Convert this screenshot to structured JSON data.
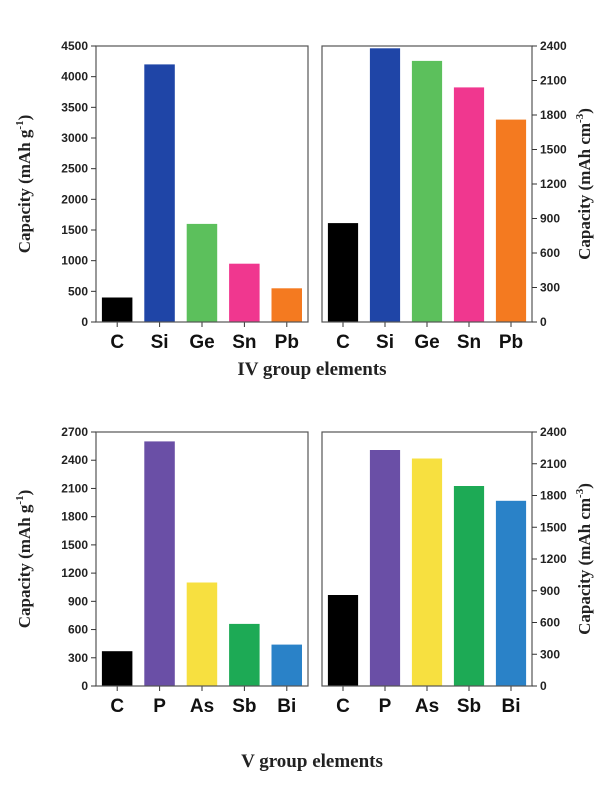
{
  "chart_data": [
    {
      "type": "bar",
      "categories": [
        "C",
        "Si",
        "Ge",
        "Sn",
        "Pb"
      ],
      "values": [
        400,
        4200,
        1600,
        950,
        550
      ],
      "colors": [
        "#000000",
        "#1f45a7",
        "#5cc05c",
        "#f0378f",
        "#f47a20"
      ],
      "ylabel": "Capacity (mAh g-1)",
      "ylim": [
        0,
        4500
      ],
      "yticks": [
        0,
        500,
        1000,
        1500,
        2000,
        2500,
        3000,
        3500,
        4000,
        4500
      ],
      "y_axis_side": "left",
      "grid": false
    },
    {
      "type": "bar",
      "categories": [
        "C",
        "Si",
        "Ge",
        "Sn",
        "Pb"
      ],
      "values": [
        860,
        2380,
        2270,
        2040,
        1760
      ],
      "colors": [
        "#000000",
        "#1f45a7",
        "#5cc05c",
        "#f0378f",
        "#f47a20"
      ],
      "ylabel": "Capacity (mAh cm-3)",
      "ylim": [
        0,
        2400
      ],
      "yticks": [
        0,
        300,
        600,
        900,
        1200,
        1500,
        1800,
        2100,
        2400
      ],
      "y_axis_side": "right",
      "grid": false
    },
    {
      "type": "bar",
      "categories": [
        "C",
        "P",
        "As",
        "Sb",
        "Bi"
      ],
      "values": [
        370,
        2600,
        1100,
        660,
        440
      ],
      "colors": [
        "#000000",
        "#6a4fa6",
        "#f7e040",
        "#1daa55",
        "#2a82c8"
      ],
      "ylabel": "Capacity (mAh g-1)",
      "ylim": [
        0,
        2700
      ],
      "yticks": [
        0,
        300,
        600,
        900,
        1200,
        1500,
        1800,
        2100,
        2400,
        2700
      ],
      "y_axis_side": "left",
      "grid": false
    },
    {
      "type": "bar",
      "categories": [
        "C",
        "P",
        "As",
        "Sb",
        "Bi"
      ],
      "values": [
        860,
        2230,
        2150,
        1890,
        1750
      ],
      "colors": [
        "#000000",
        "#6a4fa6",
        "#f7e040",
        "#1daa55",
        "#2a82c8"
      ],
      "ylabel": "Capacity (mAh cm-3)",
      "ylim": [
        0,
        2400
      ],
      "yticks": [
        0,
        300,
        600,
        900,
        1200,
        1500,
        1800,
        2100,
        2400
      ],
      "y_axis_side": "right",
      "grid": false
    }
  ],
  "group_titles": [
    "IV group elements",
    "V group elements"
  ]
}
